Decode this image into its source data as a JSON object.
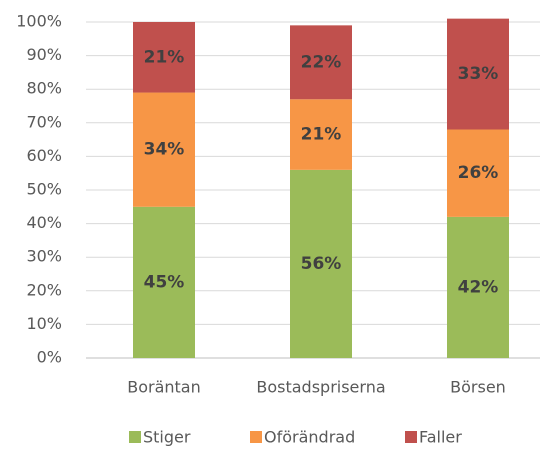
{
  "chart_data": {
    "type": "stacked_bar",
    "categories": [
      "Boräntan",
      "Bostadspriserna",
      "Börsen"
    ],
    "series": [
      {
        "name": "Stiger",
        "color": "#9bbb59",
        "values": [
          45,
          56,
          42
        ],
        "value_labels": [
          "45%",
          "56%",
          "42%"
        ]
      },
      {
        "name": "Oförändrad",
        "color": "#f79646",
        "values": [
          34,
          21,
          26
        ],
        "value_labels": [
          "34%",
          "21%",
          "26%"
        ]
      },
      {
        "name": "Faller",
        "color": "#c0504d",
        "values": [
          21,
          22,
          33
        ],
        "value_labels": [
          "21%",
          "22%",
          "33%"
        ]
      }
    ],
    "ylim": [
      0,
      100
    ],
    "yticks": [
      {
        "value": 0,
        "label": "0%"
      },
      {
        "value": 10,
        "label": "10%"
      },
      {
        "value": 20,
        "label": "20%"
      },
      {
        "value": 30,
        "label": "30%"
      },
      {
        "value": 40,
        "label": "40%"
      },
      {
        "value": 50,
        "label": "50%"
      },
      {
        "value": 60,
        "label": "60%"
      },
      {
        "value": 70,
        "label": "70%"
      },
      {
        "value": 80,
        "label": "80%"
      },
      {
        "value": 90,
        "label": "90%"
      },
      {
        "value": 100,
        "label": "100%"
      }
    ],
    "grid": true,
    "legend": "bottom"
  }
}
